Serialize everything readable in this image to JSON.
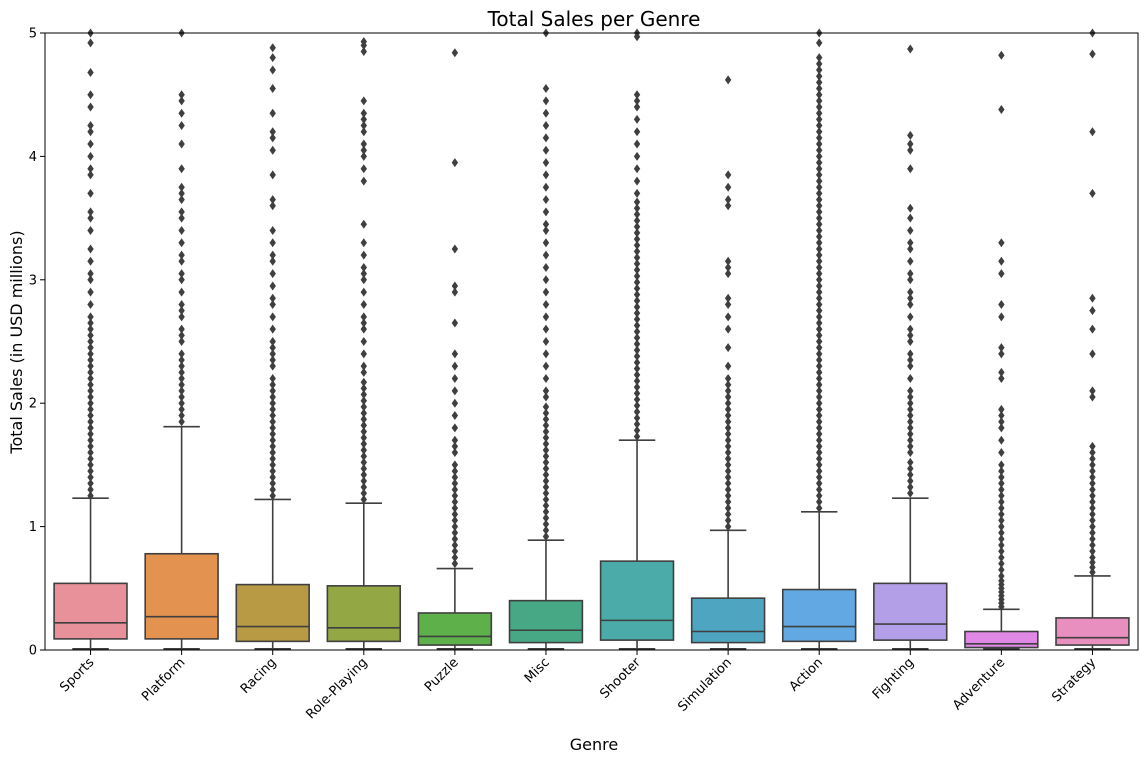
{
  "chart_data": {
    "type": "box",
    "title": "Total Sales per Genre",
    "xlabel": "Genre",
    "ylabel": "Total Sales (in USD millions)",
    "ylim": [
      0,
      5
    ],
    "yticks": [
      0,
      1,
      2,
      3,
      4,
      5
    ],
    "grid": false,
    "categories": [
      "Sports",
      "Platform",
      "Racing",
      "Role-Playing",
      "Puzzle",
      "Misc",
      "Shooter",
      "Simulation",
      "Action",
      "Fighting",
      "Adventure",
      "Strategy"
    ],
    "boxes": [
      {
        "genre": "Sports",
        "color": "#e8919b",
        "min": 0.01,
        "q1": 0.09,
        "median": 0.22,
        "q3": 0.54,
        "whisker_high": 1.23,
        "outliers": [
          1.25,
          1.3,
          1.35,
          1.4,
          1.45,
          1.5,
          1.55,
          1.6,
          1.65,
          1.7,
          1.75,
          1.8,
          1.85,
          1.9,
          1.95,
          2.0,
          2.05,
          2.1,
          2.15,
          2.2,
          2.25,
          2.3,
          2.35,
          2.4,
          2.45,
          2.5,
          2.55,
          2.6,
          2.65,
          2.7,
          2.8,
          2.9,
          3.0,
          3.05,
          3.15,
          3.25,
          3.4,
          3.5,
          3.55,
          3.7,
          3.85,
          3.9,
          4.0,
          4.1,
          4.2,
          4.25,
          4.4,
          4.5,
          4.68,
          4.92,
          5.0
        ]
      },
      {
        "genre": "Platform",
        "color": "#e3934f",
        "min": 0.01,
        "q1": 0.09,
        "median": 0.27,
        "q3": 0.78,
        "whisker_high": 1.81,
        "outliers": [
          1.85,
          1.9,
          1.95,
          2.0,
          2.05,
          2.1,
          2.15,
          2.2,
          2.25,
          2.3,
          2.35,
          2.4,
          2.5,
          2.55,
          2.6,
          2.7,
          2.75,
          2.8,
          2.9,
          3.0,
          3.05,
          3.15,
          3.2,
          3.3,
          3.4,
          3.5,
          3.55,
          3.65,
          3.7,
          3.75,
          3.9,
          4.1,
          4.25,
          4.35,
          4.45,
          4.5,
          5.0
        ]
      },
      {
        "genre": "Racing",
        "color": "#b89a45",
        "min": 0.01,
        "q1": 0.07,
        "median": 0.19,
        "q3": 0.53,
        "whisker_high": 1.22,
        "outliers": [
          1.25,
          1.3,
          1.35,
          1.4,
          1.45,
          1.5,
          1.55,
          1.6,
          1.65,
          1.7,
          1.75,
          1.8,
          1.85,
          1.9,
          1.95,
          2.0,
          2.05,
          2.1,
          2.15,
          2.2,
          2.3,
          2.35,
          2.4,
          2.45,
          2.5,
          2.6,
          2.7,
          2.8,
          2.85,
          2.95,
          3.05,
          3.15,
          3.2,
          3.3,
          3.4,
          3.6,
          3.65,
          3.85,
          4.05,
          4.15,
          4.2,
          4.35,
          4.55,
          4.7,
          4.8,
          4.88
        ]
      },
      {
        "genre": "Role-Playing",
        "color": "#93a745",
        "min": 0.01,
        "q1": 0.07,
        "median": 0.18,
        "q3": 0.52,
        "whisker_high": 1.19,
        "outliers": [
          1.22,
          1.27,
          1.32,
          1.37,
          1.42,
          1.47,
          1.52,
          1.57,
          1.62,
          1.67,
          1.72,
          1.77,
          1.82,
          1.87,
          1.92,
          1.97,
          2.02,
          2.07,
          2.12,
          2.17,
          2.25,
          2.3,
          2.4,
          2.5,
          2.6,
          2.65,
          2.7,
          2.8,
          2.9,
          3.0,
          3.05,
          3.1,
          3.2,
          3.3,
          3.45,
          3.8,
          3.9,
          4.0,
          4.05,
          4.1,
          4.2,
          4.25,
          4.3,
          4.35,
          4.45,
          4.85,
          4.9,
          4.93
        ]
      },
      {
        "genre": "Puzzle",
        "color": "#5eb14a",
        "min": 0.01,
        "q1": 0.04,
        "median": 0.11,
        "q3": 0.3,
        "whisker_high": 0.66,
        "outliers": [
          0.7,
          0.75,
          0.8,
          0.85,
          0.9,
          0.95,
          1.0,
          1.05,
          1.1,
          1.15,
          1.2,
          1.25,
          1.3,
          1.35,
          1.4,
          1.45,
          1.5,
          1.6,
          1.65,
          1.7,
          1.8,
          1.9,
          2.0,
          2.1,
          2.2,
          2.3,
          2.4,
          2.65,
          2.9,
          2.95,
          3.25,
          3.95,
          4.84
        ]
      },
      {
        "genre": "Misc",
        "color": "#46a884",
        "min": 0.01,
        "q1": 0.06,
        "median": 0.16,
        "q3": 0.4,
        "whisker_high": 0.89,
        "outliers": [
          0.92,
          0.97,
          1.02,
          1.07,
          1.12,
          1.17,
          1.22,
          1.27,
          1.32,
          1.37,
          1.42,
          1.47,
          1.52,
          1.57,
          1.62,
          1.67,
          1.72,
          1.77,
          1.82,
          1.87,
          1.92,
          1.97,
          2.05,
          2.1,
          2.2,
          2.3,
          2.4,
          2.5,
          2.6,
          2.7,
          2.8,
          2.9,
          3.0,
          3.1,
          3.2,
          3.3,
          3.4,
          3.45,
          3.55,
          3.65,
          3.75,
          3.85,
          3.95,
          4.05,
          4.15,
          4.25,
          4.35,
          4.45,
          4.55,
          5.0
        ]
      },
      {
        "genre": "Shooter",
        "color": "#4aaba8",
        "min": 0.01,
        "q1": 0.08,
        "median": 0.24,
        "q3": 0.72,
        "whisker_high": 1.7,
        "outliers": [
          1.73,
          1.78,
          1.83,
          1.88,
          1.93,
          1.98,
          2.03,
          2.08,
          2.13,
          2.18,
          2.23,
          2.28,
          2.33,
          2.38,
          2.43,
          2.48,
          2.53,
          2.58,
          2.63,
          2.68,
          2.73,
          2.78,
          2.83,
          2.88,
          2.93,
          2.98,
          3.03,
          3.08,
          3.13,
          3.18,
          3.23,
          3.28,
          3.33,
          3.38,
          3.43,
          3.48,
          3.53,
          3.58,
          3.63,
          3.7,
          3.8,
          3.9,
          4.0,
          4.1,
          4.2,
          4.3,
          4.4,
          4.45,
          4.5,
          4.97,
          5.0
        ]
      },
      {
        "genre": "Simulation",
        "color": "#4da5c1",
        "min": 0.01,
        "q1": 0.06,
        "median": 0.15,
        "q3": 0.42,
        "whisker_high": 0.97,
        "outliers": [
          1.0,
          1.05,
          1.1,
          1.15,
          1.2,
          1.25,
          1.3,
          1.35,
          1.4,
          1.45,
          1.5,
          1.55,
          1.6,
          1.65,
          1.7,
          1.75,
          1.8,
          1.85,
          1.9,
          1.95,
          2.0,
          2.05,
          2.1,
          2.15,
          2.2,
          2.3,
          2.45,
          2.6,
          2.7,
          2.8,
          2.85,
          3.05,
          3.1,
          3.15,
          3.6,
          3.65,
          3.75,
          3.85,
          4.62
        ]
      },
      {
        "genre": "Action",
        "color": "#62a9e3",
        "min": 0.01,
        "q1": 0.07,
        "median": 0.19,
        "q3": 0.49,
        "whisker_high": 1.12,
        "outliers": [
          1.15,
          1.2,
          1.25,
          1.3,
          1.35,
          1.4,
          1.45,
          1.5,
          1.55,
          1.6,
          1.65,
          1.7,
          1.75,
          1.8,
          1.85,
          1.9,
          1.95,
          2.0,
          2.05,
          2.1,
          2.15,
          2.2,
          2.25,
          2.3,
          2.35,
          2.4,
          2.45,
          2.5,
          2.55,
          2.6,
          2.65,
          2.7,
          2.75,
          2.8,
          2.85,
          2.9,
          2.95,
          3.0,
          3.05,
          3.1,
          3.15,
          3.2,
          3.25,
          3.3,
          3.35,
          3.4,
          3.45,
          3.5,
          3.55,
          3.6,
          3.65,
          3.7,
          3.75,
          3.8,
          3.85,
          3.9,
          3.95,
          4.0,
          4.05,
          4.1,
          4.15,
          4.2,
          4.25,
          4.3,
          4.35,
          4.4,
          4.45,
          4.5,
          4.55,
          4.6,
          4.65,
          4.7,
          4.75,
          4.8,
          4.92,
          5.0
        ]
      },
      {
        "genre": "Fighting",
        "color": "#b39fe8",
        "min": 0.01,
        "q1": 0.08,
        "median": 0.21,
        "q3": 0.54,
        "whisker_high": 1.23,
        "outliers": [
          1.27,
          1.32,
          1.37,
          1.42,
          1.47,
          1.52,
          1.6,
          1.65,
          1.7,
          1.75,
          1.8,
          1.85,
          1.9,
          1.95,
          2.0,
          2.05,
          2.1,
          2.2,
          2.3,
          2.35,
          2.4,
          2.5,
          2.55,
          2.6,
          2.7,
          2.8,
          2.85,
          2.9,
          3.0,
          3.05,
          3.15,
          3.25,
          3.3,
          3.4,
          3.5,
          3.58,
          3.9,
          4.05,
          4.1,
          4.17,
          4.87
        ]
      },
      {
        "genre": "Adventure",
        "color": "#e088e6",
        "min": 0.01,
        "q1": 0.02,
        "median": 0.05,
        "q3": 0.15,
        "whisker_high": 0.33,
        "outliers": [
          0.35,
          0.38,
          0.41,
          0.44,
          0.47,
          0.5,
          0.53,
          0.56,
          0.6,
          0.65,
          0.7,
          0.75,
          0.8,
          0.85,
          0.9,
          0.95,
          1.0,
          1.05,
          1.1,
          1.15,
          1.2,
          1.25,
          1.3,
          1.35,
          1.4,
          1.45,
          1.5,
          1.6,
          1.7,
          1.8,
          1.85,
          1.9,
          1.95,
          2.2,
          2.25,
          2.4,
          2.45,
          2.7,
          2.8,
          3.05,
          3.15,
          3.3,
          4.38,
          4.82
        ]
      },
      {
        "genre": "Strategy",
        "color": "#e88fbf",
        "min": 0.01,
        "q1": 0.04,
        "median": 0.1,
        "q3": 0.26,
        "whisker_high": 0.6,
        "outliers": [
          0.63,
          0.67,
          0.71,
          0.75,
          0.8,
          0.85,
          0.9,
          0.95,
          1.0,
          1.05,
          1.1,
          1.15,
          1.2,
          1.25,
          1.3,
          1.35,
          1.4,
          1.45,
          1.5,
          1.55,
          1.6,
          1.65,
          2.05,
          2.1,
          2.4,
          2.6,
          2.75,
          2.85,
          3.7,
          4.2,
          4.83,
          5.0
        ]
      }
    ]
  }
}
